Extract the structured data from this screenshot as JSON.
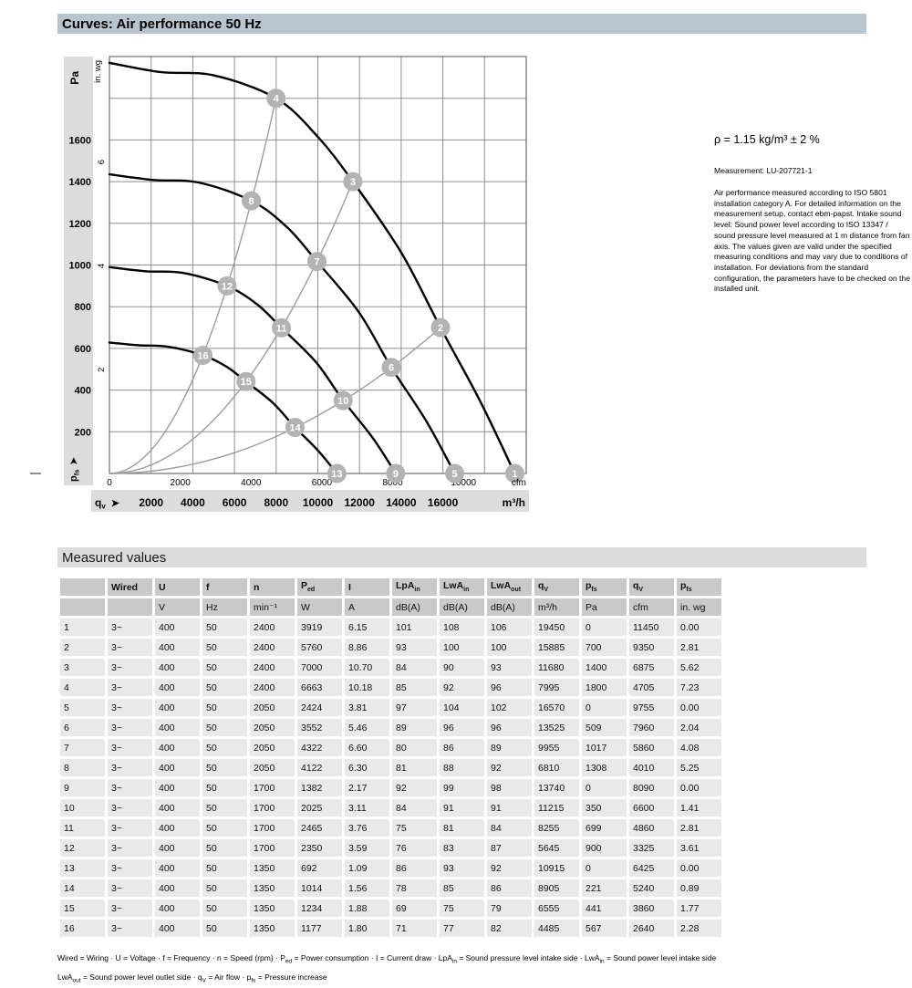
{
  "curves_section": {
    "title": "Curves: Air performance 50 Hz"
  },
  "side_note": {
    "density": "ρ = 1.15 kg/m³ ± 2 %",
    "measurement": "Measurement: LU-207721-1",
    "paragraph": "Air performance measured according to ISO 5801 installation category A. For detailed information on the measurement setup, contact ebm-papst. Intake sound level: Sound power level according to ISO 13347 / sound pressure level measured at 1 m distance from fan axis. The values given are valid under the specified measuring conditions and may vary due to conditions of installation. For deviations from the standard configuration, the parameters have to be checked on the installed unit."
  },
  "chart_data": {
    "type": "line",
    "title": "Air performance 50 Hz",
    "y_axis": {
      "label_primary": "Pa",
      "label_secondary": "in. wg",
      "bottom_label_base": "p",
      "bottom_label_sub": "fs",
      "arrow": "➤",
      "range_pa": [
        0,
        2000
      ],
      "grid_step_pa": 200,
      "ticks_pa": [
        200,
        400,
        600,
        800,
        1000,
        1200,
        1400,
        1600
      ],
      "ticks_inwg": [
        2,
        4,
        6
      ],
      "pa_per_inwg": 249
    },
    "x_axis": {
      "label_base": "q",
      "label_sub": "v",
      "arrow": "➤",
      "unit_m3h": "m³/h",
      "unit_cfm": "cfm",
      "range_m3h": [
        0,
        20000
      ],
      "grid_step_m3h": 2000,
      "ticks_m3h": [
        2000,
        4000,
        6000,
        8000,
        10000,
        12000,
        14000,
        16000
      ],
      "ticks_cfm": [
        0,
        2000,
        4000,
        6000,
        8000,
        10000
      ],
      "m3h_per_cfm": 1.699
    },
    "fan_curves": [
      {
        "rpm": 2400,
        "points_qv_pa": [
          [
            0,
            1970
          ],
          [
            2500,
            1925
          ],
          [
            5000,
            1910
          ],
          [
            7995,
            1800
          ],
          [
            10000,
            1615
          ],
          [
            11680,
            1400
          ],
          [
            14000,
            1060
          ],
          [
            15885,
            700
          ],
          [
            17800,
            345
          ],
          [
            19450,
            0
          ]
        ]
      },
      {
        "rpm": 2050,
        "points_qv_pa": [
          [
            0,
            1435
          ],
          [
            2140,
            1408
          ],
          [
            4270,
            1396
          ],
          [
            6810,
            1308
          ],
          [
            8540,
            1180
          ],
          [
            9955,
            1017
          ],
          [
            11960,
            775
          ],
          [
            13525,
            509
          ],
          [
            15200,
            252
          ],
          [
            16570,
            0
          ]
        ]
      },
      {
        "rpm": 1700,
        "points_qv_pa": [
          [
            0,
            990
          ],
          [
            1770,
            970
          ],
          [
            3540,
            962
          ],
          [
            5645,
            900
          ],
          [
            7080,
            812
          ],
          [
            8255,
            699
          ],
          [
            9920,
            533
          ],
          [
            11215,
            350
          ],
          [
            12610,
            174
          ],
          [
            13740,
            0
          ]
        ]
      },
      {
        "rpm": 1350,
        "points_qv_pa": [
          [
            0,
            628
          ],
          [
            1405,
            615
          ],
          [
            2810,
            608
          ],
          [
            4485,
            567
          ],
          [
            5625,
            512
          ],
          [
            6555,
            441
          ],
          [
            7875,
            336
          ],
          [
            8905,
            221
          ],
          [
            10010,
            110
          ],
          [
            10915,
            0
          ]
        ]
      }
    ],
    "operating_points": [
      {
        "id": 1,
        "qv": 19450,
        "pfs": 0
      },
      {
        "id": 2,
        "qv": 15885,
        "pfs": 700
      },
      {
        "id": 3,
        "qv": 11680,
        "pfs": 1400
      },
      {
        "id": 4,
        "qv": 7995,
        "pfs": 1800
      },
      {
        "id": 5,
        "qv": 16570,
        "pfs": 0
      },
      {
        "id": 6,
        "qv": 13525,
        "pfs": 509
      },
      {
        "id": 7,
        "qv": 9955,
        "pfs": 1017
      },
      {
        "id": 8,
        "qv": 6810,
        "pfs": 1308
      },
      {
        "id": 9,
        "qv": 13740,
        "pfs": 0
      },
      {
        "id": 10,
        "qv": 11215,
        "pfs": 350
      },
      {
        "id": 11,
        "qv": 8255,
        "pfs": 699
      },
      {
        "id": 12,
        "qv": 5645,
        "pfs": 900
      },
      {
        "id": 13,
        "qv": 10915,
        "pfs": 0
      },
      {
        "id": 14,
        "qv": 8905,
        "pfs": 221
      },
      {
        "id": 15,
        "qv": 6555,
        "pfs": 441
      },
      {
        "id": 16,
        "qv": 4485,
        "pfs": 567
      }
    ],
    "system_lines": [
      {
        "through_points": [
          4,
          8,
          12,
          16
        ],
        "top_point": 4
      },
      {
        "through_points": [
          3,
          7,
          11,
          15
        ],
        "top_point": 3
      },
      {
        "through_points": [
          2,
          6,
          10,
          14
        ],
        "top_point": 2
      }
    ],
    "colors": {
      "fan_curve": "#000000",
      "system_line": "#9c9c9c",
      "grid": "#8f8f8f",
      "marker_fill": "#b3b3b3",
      "marker_text": "#ffffff",
      "band_bg": "#dcdcdc",
      "title_bar_bg": "#b9c5ce"
    }
  },
  "table": {
    "section_title": "Measured values",
    "headers": [
      {
        "t": ""
      },
      {
        "t": "Wired"
      },
      {
        "t": "U"
      },
      {
        "t": "f"
      },
      {
        "t": "n"
      },
      {
        "t": "P",
        "sub": "ed"
      },
      {
        "t": "I"
      },
      {
        "t": "LpA",
        "sub": "in"
      },
      {
        "t": "LwA",
        "sub": "in"
      },
      {
        "t": "LwA",
        "sub": "out"
      },
      {
        "t": "q",
        "sub": "V"
      },
      {
        "t": "p",
        "sub": "fs"
      },
      {
        "t": "q",
        "sub": "V"
      },
      {
        "t": "p",
        "sub": "fs"
      }
    ],
    "units": [
      "",
      "",
      "V",
      "Hz",
      "min⁻¹",
      "W",
      "A",
      "dB(A)",
      "dB(A)",
      "dB(A)",
      "m³/h",
      "Pa",
      "cfm",
      "in. wg"
    ],
    "rows": [
      [
        "1",
        "3~",
        "400",
        "50",
        "2400",
        "3919",
        "6.15",
        "101",
        "108",
        "106",
        "19450",
        "0",
        "11450",
        "0.00"
      ],
      [
        "2",
        "3~",
        "400",
        "50",
        "2400",
        "5760",
        "8.86",
        "93",
        "100",
        "100",
        "15885",
        "700",
        "9350",
        "2.81"
      ],
      [
        "3",
        "3~",
        "400",
        "50",
        "2400",
        "7000",
        "10.70",
        "84",
        "90",
        "93",
        "11680",
        "1400",
        "6875",
        "5.62"
      ],
      [
        "4",
        "3~",
        "400",
        "50",
        "2400",
        "6663",
        "10.18",
        "85",
        "92",
        "96",
        "7995",
        "1800",
        "4705",
        "7.23"
      ],
      [
        "5",
        "3~",
        "400",
        "50",
        "2050",
        "2424",
        "3.81",
        "97",
        "104",
        "102",
        "16570",
        "0",
        "9755",
        "0.00"
      ],
      [
        "6",
        "3~",
        "400",
        "50",
        "2050",
        "3552",
        "5.46",
        "89",
        "96",
        "96",
        "13525",
        "509",
        "7960",
        "2.04"
      ],
      [
        "7",
        "3~",
        "400",
        "50",
        "2050",
        "4322",
        "6.60",
        "80",
        "86",
        "89",
        "9955",
        "1017",
        "5860",
        "4.08"
      ],
      [
        "8",
        "3~",
        "400",
        "50",
        "2050",
        "4122",
        "6.30",
        "81",
        "88",
        "92",
        "6810",
        "1308",
        "4010",
        "5.25"
      ],
      [
        "9",
        "3~",
        "400",
        "50",
        "1700",
        "1382",
        "2.17",
        "92",
        "99",
        "98",
        "13740",
        "0",
        "8090",
        "0.00"
      ],
      [
        "10",
        "3~",
        "400",
        "50",
        "1700",
        "2025",
        "3.11",
        "84",
        "91",
        "91",
        "11215",
        "350",
        "6600",
        "1.41"
      ],
      [
        "11",
        "3~",
        "400",
        "50",
        "1700",
        "2465",
        "3.76",
        "75",
        "81",
        "84",
        "8255",
        "699",
        "4860",
        "2.81"
      ],
      [
        "12",
        "3~",
        "400",
        "50",
        "1700",
        "2350",
        "3.59",
        "76",
        "83",
        "87",
        "5645",
        "900",
        "3325",
        "3.61"
      ],
      [
        "13",
        "3~",
        "400",
        "50",
        "1350",
        "692",
        "1.09",
        "86",
        "93",
        "92",
        "10915",
        "0",
        "6425",
        "0.00"
      ],
      [
        "14",
        "3~",
        "400",
        "50",
        "1350",
        "1014",
        "1.56",
        "78",
        "85",
        "86",
        "8905",
        "221",
        "5240",
        "0.89"
      ],
      [
        "15",
        "3~",
        "400",
        "50",
        "1350",
        "1234",
        "1.88",
        "69",
        "75",
        "79",
        "6555",
        "441",
        "3860",
        "1.77"
      ],
      [
        "16",
        "3~",
        "400",
        "50",
        "1350",
        "1177",
        "1.80",
        "71",
        "77",
        "82",
        "4485",
        "567",
        "2640",
        "2.28"
      ]
    ]
  },
  "footnote": {
    "line1_segments": [
      {
        "t": "Wired = Wiring · U = Voltage · f = Frequency · n = Speed (rpm) · P"
      },
      {
        "sub": "ed"
      },
      {
        "t": " = Power consumption · I = Current draw · LpA"
      },
      {
        "sub": "in"
      },
      {
        "t": " = Sound pressure level intake side · LwA"
      },
      {
        "sub": "in"
      },
      {
        "t": " = Sound power level intake side"
      }
    ],
    "line2_segments": [
      {
        "t": "LwA"
      },
      {
        "sub": "out"
      },
      {
        "t": " = Sound power level outlet side · q"
      },
      {
        "sub": "V"
      },
      {
        "t": " = Air flow · p"
      },
      {
        "sub": "fs"
      },
      {
        "t": " = Pressure increase"
      }
    ]
  }
}
